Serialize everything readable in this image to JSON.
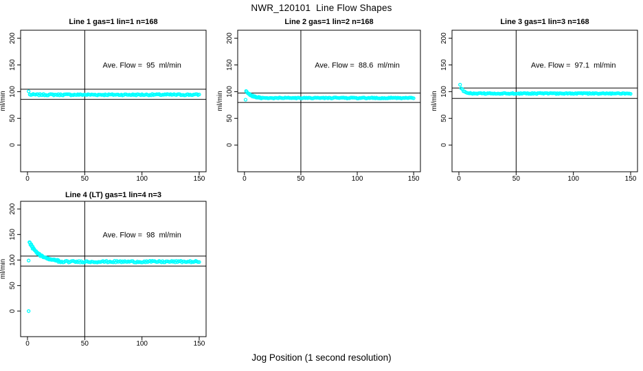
{
  "page_title": "NWR_120101  Line Flow Shapes",
  "xlabel": "Jog Position (1 second resolution)",
  "colors": {
    "background": "#ffffff",
    "axis": "#000000",
    "text": "#000000",
    "points": "#00ffff"
  },
  "chart_data": {
    "type": "scatter",
    "marker": "open-circle",
    "point_color": "#00ffff",
    "shared": {
      "xlim": [
        -6,
        156
      ],
      "ylim": [
        -50,
        215
      ],
      "xticks": [
        0,
        50,
        100,
        150
      ],
      "yticks": [
        0,
        50,
        100,
        150,
        200
      ],
      "ylabel": "ml/min",
      "vline_x": 50,
      "hline_rule": "ave_flow plus/minus 10%",
      "grid": false,
      "legend": "none"
    },
    "panels": [
      {
        "title": "Line 1 gas=1 lin=1 n=168",
        "annotation": "Ave. Flow =  95  ml/min",
        "ave_flow": 95,
        "hlines": [
          104.5,
          85.5
        ],
        "outliers": [
          [
            1,
            100.5
          ]
        ],
        "decay": null,
        "flat": {
          "x_start": 2,
          "x_end": 150,
          "value": 94.3,
          "noise": 1.3
        },
        "annotation_xy": [
          100,
          150
        ]
      },
      {
        "title": "Line 2 gas=1 lin=2 n=168",
        "annotation": "Ave. Flow =  88.6  ml/min",
        "ave_flow": 88.6,
        "hlines": [
          97.5,
          79.7
        ],
        "outliers": [
          [
            1,
            85
          ]
        ],
        "decay": {
          "x_start": 2,
          "x_end": 14,
          "from": 100.5,
          "to": 88.3,
          "passes": 2
        },
        "flat": {
          "x_start": 14,
          "x_end": 150,
          "value": 88.2,
          "noise": 0.9
        },
        "annotation_xy": [
          100,
          150
        ]
      },
      {
        "title": "Line 3 gas=1 lin=3 n=168",
        "annotation": "Ave. Flow =  97.1  ml/min",
        "ave_flow": 97.1,
        "hlines": [
          106.8,
          87.4
        ],
        "outliers": [
          [
            1,
            113
          ]
        ],
        "decay": {
          "x_start": 2,
          "x_end": 10,
          "from": 107,
          "to": 96.9,
          "passes": 1
        },
        "flat": {
          "x_start": 10,
          "x_end": 150,
          "value": 96.6,
          "noise": 0.9
        },
        "annotation_xy": [
          100,
          150
        ]
      },
      {
        "title": "Line 4 (LT) gas=1 lin=4 n=3",
        "annotation": "Ave. Flow =  98  ml/min",
        "ave_flow": 98,
        "hlines": [
          107.8,
          88.2
        ],
        "outliers": [
          [
            1,
            99
          ],
          [
            1,
            0
          ]
        ],
        "decay": {
          "x_start": 2,
          "x_end": 27,
          "from": 134,
          "to": 97.4,
          "passes": 3
        },
        "flat": {
          "x_start": 27,
          "x_end": 150,
          "value": 96.8,
          "noise": 1.6
        },
        "annotation_xy": [
          100,
          150
        ]
      }
    ]
  }
}
